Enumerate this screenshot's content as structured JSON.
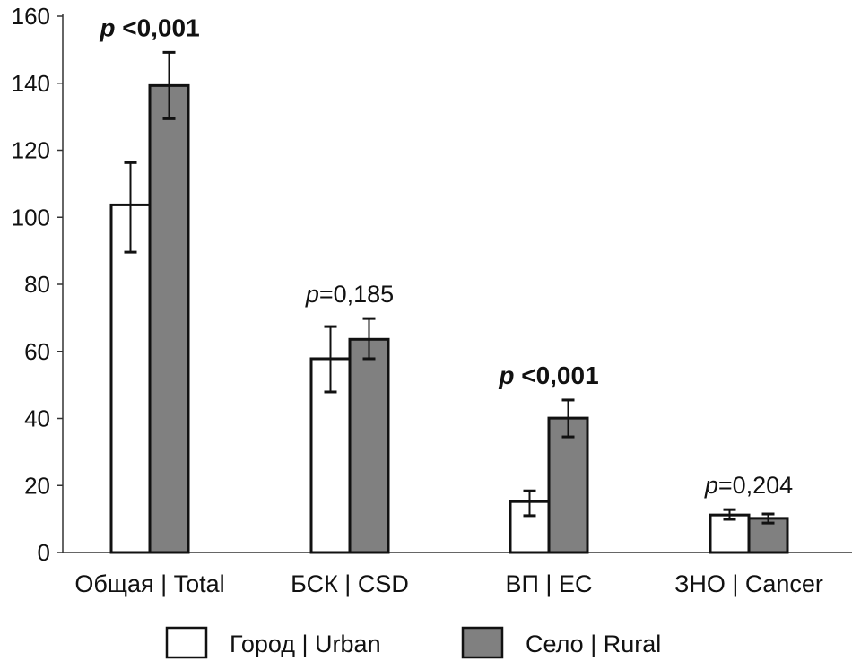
{
  "chart_data": {
    "type": "bar",
    "title": "",
    "xlabel": "",
    "ylabel": "",
    "ylim": [
      0,
      160
    ],
    "yticks": [
      0,
      20,
      40,
      60,
      80,
      100,
      120,
      140,
      160
    ],
    "ytick_labels": [
      "0",
      "20",
      "40",
      "60",
      "80",
      "100",
      "120",
      "140",
      "160"
    ],
    "grid": false,
    "categories": [
      "Общая | Total",
      "БСК | CSD",
      "ВП | EC",
      "ЗНО | Cancer"
    ],
    "series": [
      {
        "name": "Город | Urban",
        "color": "#ffffff",
        "values": [
          103.7,
          57.8,
          15.2,
          11.2
        ],
        "err_high": [
          116.3,
          67.4,
          18.4,
          12.8
        ],
        "err_low": [
          89.6,
          47.9,
          11.0,
          9.9
        ]
      },
      {
        "name": "Село | Rural",
        "color": "#808080",
        "values": [
          139.3,
          63.6,
          40.1,
          10.2
        ],
        "err_high": [
          149.2,
          69.8,
          45.5,
          11.5
        ],
        "err_low": [
          129.4,
          57.8,
          34.5,
          8.8
        ]
      }
    ],
    "annotations": [
      {
        "p": "p",
        "text": " <0,001",
        "bold": true
      },
      {
        "p": "p",
        "text": "=0,185",
        "bold": false
      },
      {
        "p": "p",
        "text": " <0,001",
        "bold": true
      },
      {
        "p": "p",
        "text": "=0,204",
        "bold": false
      }
    ],
    "legend_position": "bottom"
  }
}
